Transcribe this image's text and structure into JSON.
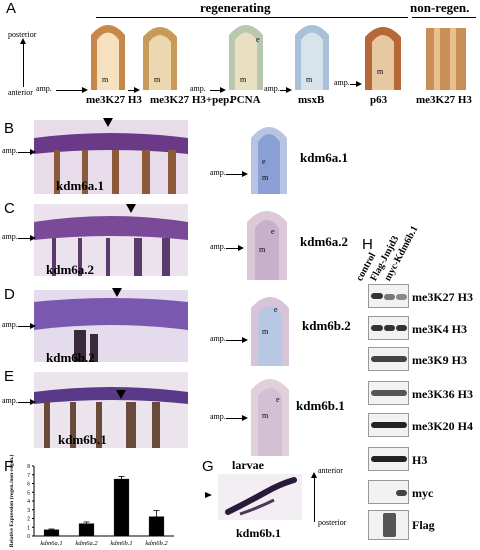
{
  "panels": {
    "A": "A",
    "B": "B",
    "C": "C",
    "D": "D",
    "E": "E",
    "F": "F",
    "G": "G",
    "H": "H"
  },
  "panel_a": {
    "regen_header": "regenerating",
    "nonregen_header": "non-regen.",
    "posterior": "posterior",
    "anterior": "anterior",
    "amp": "amp.",
    "m": "m",
    "e": "e",
    "labels": [
      "me3K27 H3",
      "me3K27 H3+pep.",
      "PCNA",
      "msxB",
      "p63",
      "me3K27 H3"
    ]
  },
  "panels_be": {
    "amp": "amp.",
    "m": "m",
    "e": "e",
    "whole_mount": [
      "kdm6a.1",
      "kdm6a.2",
      "kdm6b.2",
      "kdm6b.1"
    ],
    "sections": [
      "kdm6a.1",
      "kdm6a.2",
      "kdm6b.2",
      "kdm6b.1"
    ]
  },
  "panel_g": {
    "title": "larvae",
    "anterior": "anterior",
    "posterior": "posterior",
    "gene": "kdm6b.1"
  },
  "panel_h": {
    "lanes": [
      "control",
      "Flag-Jmjd3",
      "myc-Kdm6b.1"
    ],
    "blots": [
      "me3K27 H3",
      "me3K4 H3",
      "me3K9 H3",
      "me3K36 H3",
      "me3K20 H4",
      "H3",
      "myc",
      "Flag"
    ]
  },
  "chart_data": {
    "type": "bar",
    "categories": [
      "kdm6a.1",
      "kdm6a.2",
      "kdm6b.1",
      "kdm6b.2"
    ],
    "values": [
      0.7,
      1.4,
      6.5,
      2.2
    ],
    "errors": [
      0.1,
      0.2,
      0.3,
      0.7
    ],
    "ylabel": "Relative Expression (regen./non-regen.)",
    "ylim": [
      0,
      8
    ],
    "yticks": [
      0,
      1,
      2,
      3,
      4,
      5,
      6,
      7,
      8
    ],
    "bar_color": "#000000"
  }
}
